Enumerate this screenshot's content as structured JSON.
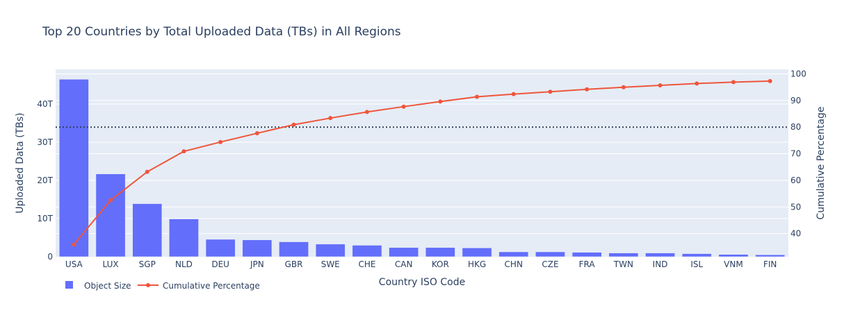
{
  "chart_data": {
    "type": "bar+line",
    "title": "Top 20 Countries by Total Uploaded Data (TBs) in All Regions",
    "xlabel": "Country ISO Code",
    "ylabel": "Uploaded Data (TBs)",
    "y2label": "Cumulative Percentage",
    "categories": [
      "USA",
      "LUX",
      "SGP",
      "NLD",
      "DEU",
      "JPN",
      "GBR",
      "SWE",
      "CHE",
      "CAN",
      "KOR",
      "HKG",
      "CHN",
      "CZE",
      "FRA",
      "TWN",
      "IND",
      "ISL",
      "VNM",
      "FIN"
    ],
    "series": [
      {
        "name": "Object Size",
        "type": "bar",
        "axis": "y",
        "color": "#636efa",
        "values": [
          46.5,
          21.7,
          13.9,
          9.9,
          4.55,
          4.4,
          3.9,
          3.3,
          3.0,
          2.4,
          2.4,
          2.3,
          1.27,
          1.27,
          1.15,
          0.97,
          0.97,
          0.8,
          0.6,
          0.5
        ]
      },
      {
        "name": "Cumulative Percentage",
        "type": "line+markers",
        "axis": "y2",
        "color": "#ef553b",
        "values": [
          35.9,
          52.5,
          63.2,
          70.9,
          74.4,
          77.7,
          80.9,
          83.4,
          85.7,
          87.7,
          89.6,
          91.4,
          92.4,
          93.3,
          94.2,
          95.0,
          95.7,
          96.4,
          96.9,
          97.3
        ]
      }
    ],
    "y_unit": "T",
    "ylim": [
      0,
      49.1
    ],
    "y_ticks": [
      0,
      10,
      20,
      30,
      40
    ],
    "y_tick_labels": [
      "0",
      "10T",
      "20T",
      "30T",
      "40T"
    ],
    "y2lim": [
      31.3,
      101.7
    ],
    "y2_ticks": [
      40,
      50,
      60,
      70,
      80,
      90,
      100
    ],
    "y2_tick_labels": [
      "40",
      "50",
      "60",
      "70",
      "80",
      "90",
      "100"
    ],
    "reference_line": {
      "axis": "y2",
      "value": 80,
      "style": "dotted",
      "color": "#2a3f5f"
    },
    "grid": true,
    "legend_position": "bottom-left",
    "colors": {
      "background": "#e5ecf6",
      "text": "#2a3f5f"
    }
  }
}
